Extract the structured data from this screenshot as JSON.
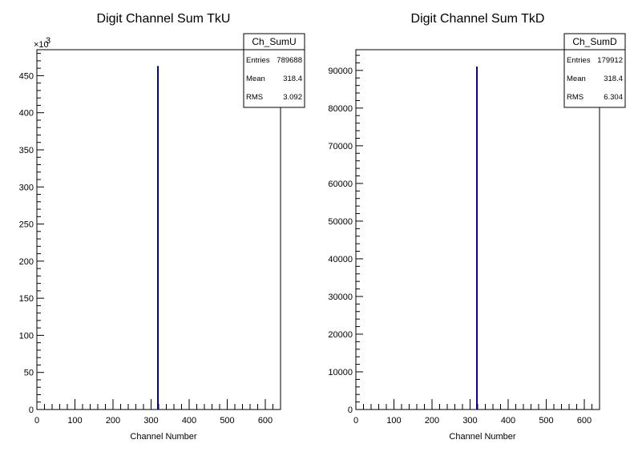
{
  "chart_data": [
    {
      "type": "bar",
      "title": "Digit Channel Sum TkU",
      "xlabel": "Channel Number",
      "ylabel": "",
      "xlim": [
        0,
        640
      ],
      "ylim": [
        0,
        485000
      ],
      "y_multiplier": "×10",
      "y_multiplier_exp": "3",
      "xticks": [
        "0",
        "100",
        "200",
        "300",
        "400",
        "500",
        "600"
      ],
      "yticks": [
        "0",
        "50",
        "100",
        "150",
        "200",
        "250",
        "300",
        "350",
        "400",
        "450"
      ],
      "ytick_values": [
        0,
        50000,
        100000,
        150000,
        200000,
        250000,
        300000,
        350000,
        400000,
        450000
      ],
      "bins": [
        {
          "x": 318,
          "value": 463000
        }
      ],
      "stats": {
        "name": "Ch_SumU",
        "rows": [
          {
            "label": "Entries",
            "value": "789688"
          },
          {
            "label": "Mean",
            "value": "318.4"
          },
          {
            "label": "RMS",
            "value": "3.092"
          }
        ]
      }
    },
    {
      "type": "bar",
      "title": "Digit Channel Sum TkD",
      "xlabel": "Channel Number",
      "ylabel": "",
      "xlim": [
        0,
        640
      ],
      "ylim": [
        0,
        95500
      ],
      "y_multiplier": "",
      "y_multiplier_exp": "",
      "xticks": [
        "0",
        "100",
        "200",
        "300",
        "400",
        "500",
        "600"
      ],
      "yticks": [
        "0",
        "10000",
        "20000",
        "30000",
        "40000",
        "50000",
        "60000",
        "70000",
        "80000",
        "90000"
      ],
      "ytick_values": [
        0,
        10000,
        20000,
        30000,
        40000,
        50000,
        60000,
        70000,
        80000,
        90000
      ],
      "bins": [
        {
          "x": 318,
          "value": 91000
        }
      ],
      "stats": {
        "name": "Ch_SumD",
        "rows": [
          {
            "label": "Entries",
            "value": "179912"
          },
          {
            "label": "Mean",
            "value": "318.4"
          },
          {
            "label": "RMS",
            "value": "6.304"
          }
        ]
      }
    }
  ],
  "colors": {
    "bar": "#000080",
    "axis": "#000000",
    "frame": "#000000"
  }
}
